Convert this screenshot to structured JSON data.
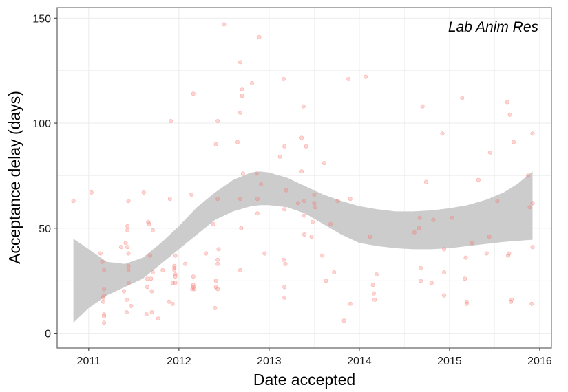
{
  "chart_data": {
    "type": "scatter",
    "title": "",
    "annotation": "Lab Anim Res",
    "xlabel": "Date accepted",
    "ylabel": "Acceptance delay (days)",
    "xlim": [
      2010.65,
      2016.13
    ],
    "ylim": [
      -7,
      155
    ],
    "x_ticks": [
      2011,
      2012,
      2013,
      2014,
      2015,
      2016
    ],
    "x_tick_labels": [
      "2011",
      "2012",
      "2013",
      "2014",
      "2015",
      "2016"
    ],
    "y_ticks": [
      0,
      50,
      100,
      150
    ],
    "y_tick_labels": [
      "0",
      "50",
      "100",
      "150"
    ],
    "grid": true,
    "colors": {
      "points": "#f8766d",
      "ribbon": "#cccccc",
      "grid": "#ebebeb",
      "border": "#7f7f7f"
    },
    "series": [
      {
        "name": "acceptance delay",
        "points": [
          [
            2010.83,
            63
          ],
          [
            2011.03,
            67
          ],
          [
            2011.13,
            38
          ],
          [
            2011.15,
            34
          ],
          [
            2011.16,
            17
          ],
          [
            2011.16,
            15
          ],
          [
            2011.17,
            21
          ],
          [
            2011.17,
            30
          ],
          [
            2011.17,
            18
          ],
          [
            2011.17,
            9
          ],
          [
            2011.17,
            8
          ],
          [
            2011.17,
            5
          ],
          [
            2011.36,
            41
          ],
          [
            2011.39,
            20
          ],
          [
            2011.41,
            43
          ],
          [
            2011.42,
            16
          ],
          [
            2011.42,
            10
          ],
          [
            2011.43,
            51
          ],
          [
            2011.43,
            49
          ],
          [
            2011.43,
            41
          ],
          [
            2011.44,
            32
          ],
          [
            2011.44,
            30
          ],
          [
            2011.44,
            24
          ],
          [
            2011.44,
            63
          ],
          [
            2011.44,
            38
          ],
          [
            2011.47,
            13
          ],
          [
            2011.61,
            67
          ],
          [
            2011.64,
            9
          ],
          [
            2011.65,
            26
          ],
          [
            2011.65,
            22
          ],
          [
            2011.66,
            53
          ],
          [
            2011.67,
            52
          ],
          [
            2011.68,
            37
          ],
          [
            2011.69,
            26
          ],
          [
            2011.7,
            10
          ],
          [
            2011.7,
            20
          ],
          [
            2011.71,
            49
          ],
          [
            2011.71,
            29
          ],
          [
            2011.77,
            7
          ],
          [
            2011.82,
            30
          ],
          [
            2011.89,
            15
          ],
          [
            2011.9,
            64
          ],
          [
            2011.91,
            101
          ],
          [
            2011.93,
            24
          ],
          [
            2011.93,
            14
          ],
          [
            2011.95,
            32
          ],
          [
            2011.95,
            31
          ],
          [
            2011.95,
            30
          ],
          [
            2011.96,
            28
          ],
          [
            2011.96,
            24
          ],
          [
            2011.96,
            37
          ],
          [
            2011.96,
            27
          ],
          [
            2012.07,
            33
          ],
          [
            2012.14,
            66
          ],
          [
            2012.15,
            21
          ],
          [
            2012.16,
            22
          ],
          [
            2012.16,
            27
          ],
          [
            2012.16,
            114
          ],
          [
            2012.16,
            23
          ],
          [
            2012.17,
            21
          ],
          [
            2012.3,
            38
          ],
          [
            2012.38,
            52
          ],
          [
            2012.4,
            12
          ],
          [
            2012.41,
            90
          ],
          [
            2012.41,
            22
          ],
          [
            2012.41,
            25
          ],
          [
            2012.43,
            21
          ],
          [
            2012.43,
            33
          ],
          [
            2012.43,
            35
          ],
          [
            2012.43,
            101
          ],
          [
            2012.43,
            64
          ],
          [
            2012.44,
            40
          ],
          [
            2012.5,
            147
          ],
          [
            2012.65,
            91
          ],
          [
            2012.68,
            105
          ],
          [
            2012.68,
            129
          ],
          [
            2012.68,
            64
          ],
          [
            2012.68,
            30
          ],
          [
            2012.69,
            50
          ],
          [
            2012.7,
            116
          ],
          [
            2012.7,
            113
          ],
          [
            2012.71,
            76
          ],
          [
            2012.81,
            119
          ],
          [
            2012.86,
            76
          ],
          [
            2012.87,
            64
          ],
          [
            2012.87,
            57
          ],
          [
            2012.89,
            141
          ],
          [
            2012.91,
            71
          ],
          [
            2012.95,
            38
          ],
          [
            2013.12,
            84
          ],
          [
            2013.16,
            121
          ],
          [
            2013.16,
            35
          ],
          [
            2013.17,
            89
          ],
          [
            2013.17,
            59
          ],
          [
            2013.17,
            22
          ],
          [
            2013.17,
            17
          ],
          [
            2013.18,
            33
          ],
          [
            2013.19,
            68
          ],
          [
            2013.32,
            62
          ],
          [
            2013.36,
            93
          ],
          [
            2013.36,
            77
          ],
          [
            2013.38,
            108
          ],
          [
            2013.39,
            56
          ],
          [
            2013.39,
            47
          ],
          [
            2013.39,
            63
          ],
          [
            2013.41,
            89
          ],
          [
            2013.47,
            46
          ],
          [
            2013.48,
            53
          ],
          [
            2013.5,
            66
          ],
          [
            2013.5,
            62
          ],
          [
            2013.51,
            60
          ],
          [
            2013.59,
            37
          ],
          [
            2013.61,
            81
          ],
          [
            2013.63,
            25
          ],
          [
            2013.68,
            52
          ],
          [
            2013.72,
            29
          ],
          [
            2013.76,
            63
          ],
          [
            2013.83,
            6
          ],
          [
            2013.88,
            121
          ],
          [
            2013.9,
            14
          ],
          [
            2013.9,
            64
          ],
          [
            2014.07,
            122
          ],
          [
            2014.12,
            46
          ],
          [
            2014.15,
            23
          ],
          [
            2014.16,
            19
          ],
          [
            2014.17,
            16
          ],
          [
            2014.19,
            28
          ],
          [
            2014.61,
            48
          ],
          [
            2014.66,
            50
          ],
          [
            2014.67,
            55
          ],
          [
            2014.68,
            25
          ],
          [
            2014.68,
            31
          ],
          [
            2014.7,
            108
          ],
          [
            2014.74,
            72
          ],
          [
            2014.8,
            24
          ],
          [
            2014.82,
            54
          ],
          [
            2014.92,
            95
          ],
          [
            2014.94,
            40
          ],
          [
            2014.94,
            29
          ],
          [
            2014.94,
            18
          ],
          [
            2015.03,
            55
          ],
          [
            2015.14,
            112
          ],
          [
            2015.17,
            26
          ],
          [
            2015.18,
            36
          ],
          [
            2015.19,
            14
          ],
          [
            2015.19,
            15
          ],
          [
            2015.25,
            43
          ],
          [
            2015.32,
            73
          ],
          [
            2015.41,
            38
          ],
          [
            2015.44,
            46
          ],
          [
            2015.45,
            86
          ],
          [
            2015.53,
            63
          ],
          [
            2015.64,
            110
          ],
          [
            2015.65,
            37
          ],
          [
            2015.66,
            38
          ],
          [
            2015.67,
            104
          ],
          [
            2015.68,
            15
          ],
          [
            2015.69,
            16
          ],
          [
            2015.71,
            91
          ],
          [
            2015.87,
            75
          ],
          [
            2015.89,
            60
          ],
          [
            2015.91,
            14
          ],
          [
            2015.92,
            62
          ],
          [
            2015.92,
            95
          ],
          [
            2015.92,
            41
          ]
        ]
      }
    ],
    "smooth_band": {
      "x": [
        2010.83,
        2011.0,
        2011.2,
        2011.4,
        2011.6,
        2011.8,
        2012.0,
        2012.2,
        2012.4,
        2012.6,
        2012.8,
        2012.9,
        2013.0,
        2013.2,
        2013.4,
        2013.6,
        2013.8,
        2014.0,
        2014.2,
        2014.4,
        2014.6,
        2014.8,
        2015.0,
        2015.2,
        2015.4,
        2015.6,
        2015.75,
        2015.92
      ],
      "lower": [
        5,
        12,
        18,
        22,
        26,
        33,
        40,
        47,
        54,
        58,
        60.5,
        61,
        61,
        60,
        57,
        52,
        47,
        43,
        41.5,
        40.5,
        40,
        40,
        40.5,
        41.5,
        42.5,
        43.5,
        44,
        44.5
      ],
      "upper": [
        45,
        40,
        34,
        33,
        36,
        43,
        51,
        60,
        67,
        73,
        76.5,
        77,
        76.5,
        74,
        70,
        66,
        63,
        60.5,
        59,
        58,
        58,
        58.5,
        59.5,
        61,
        63.5,
        67,
        71,
        77
      ]
    }
  }
}
